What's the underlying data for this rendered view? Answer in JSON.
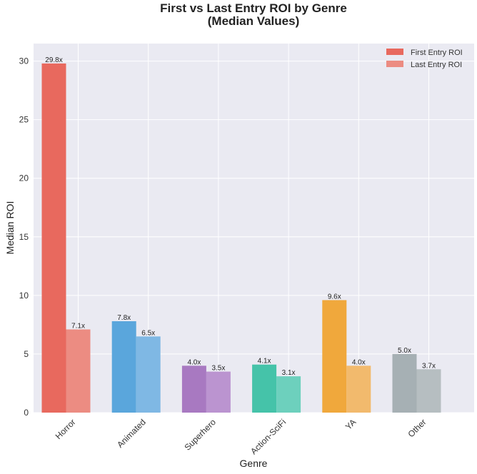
{
  "chart_data": {
    "type": "bar",
    "title": "First vs Last Entry ROI by Genre",
    "subtitle": "(Median Values)",
    "xlabel": "Genre",
    "ylabel": "Median ROI",
    "ylim": [
      0,
      31.5
    ],
    "yticks": [
      0,
      5,
      10,
      15,
      20,
      25,
      30
    ],
    "grid": true,
    "legend_position": "top-right",
    "categories": [
      "Horror",
      "Animated",
      "Superhero",
      "Action-SciFi",
      "YA",
      "Other"
    ],
    "series": [
      {
        "name": "First Entry ROI",
        "values": [
          29.8,
          7.8,
          4.0,
          4.1,
          9.6,
          5.0
        ],
        "labels": [
          "29.8x",
          "7.8x",
          "4.0x",
          "4.1x",
          "9.6x",
          "5.0x"
        ],
        "colors": [
          "#e8695e",
          "#5aa6dc",
          "#a879c1",
          "#45c3a9",
          "#f0a83c",
          "#a6b0b4"
        ]
      },
      {
        "name": "Last Entry ROI",
        "values": [
          7.1,
          6.5,
          3.5,
          3.1,
          4.0,
          3.7
        ],
        "labels": [
          "7.1x",
          "6.5x",
          "3.5x",
          "3.1x",
          "4.0x",
          "3.7x"
        ],
        "colors": [
          "#ec8c82",
          "#7fb8e4",
          "#bb94d0",
          "#6dd0bd",
          "#f2ba6d",
          "#b6bec1"
        ]
      }
    ],
    "legend_colors": [
      "#e8695e",
      "#ec8c82"
    ],
    "background_color": "#eaeaf2",
    "grid_color": "#ffffff"
  }
}
